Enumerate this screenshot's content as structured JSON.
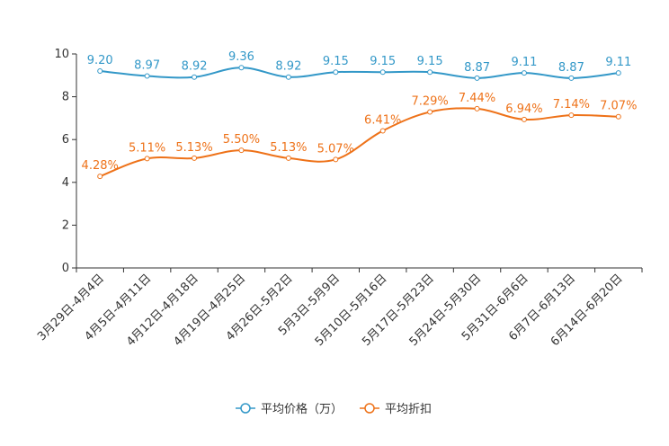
{
  "chart_data": {
    "type": "line",
    "categories": [
      "3月29日-4月4日",
      "4月5日-4月11日",
      "4月12日-4月18日",
      "4月19日-4月25日",
      "4月26日-5月2日",
      "5月3日-5月9日",
      "5月10日-5月16日",
      "5月17日-5月23日",
      "5月24日-5月30日",
      "5月31日-6月6日",
      "6月7日-6月13日",
      "6月14日-6月20日"
    ],
    "series": [
      {
        "name": "平均价格（万）",
        "values": [
          9.2,
          8.97,
          8.92,
          9.36,
          8.92,
          9.15,
          9.15,
          9.15,
          8.87,
          9.11,
          8.87,
          9.11
        ],
        "labels": [
          "9.20",
          "8.97",
          "8.92",
          "9.36",
          "8.92",
          "9.15",
          "9.15",
          "9.15",
          "8.87",
          "9.11",
          "8.87",
          "9.11"
        ],
        "color": "#3398c8"
      },
      {
        "name": "平均折扣",
        "values": [
          4.28,
          5.11,
          5.13,
          5.5,
          5.13,
          5.07,
          6.41,
          7.29,
          7.44,
          6.94,
          7.14,
          7.07
        ],
        "labels": [
          "4.28%",
          "5.11%",
          "5.13%",
          "5.50%",
          "5.13%",
          "5.07%",
          "6.41%",
          "7.29%",
          "7.44%",
          "6.94%",
          "7.14%",
          "7.07%"
        ],
        "color": "#ee7219"
      }
    ],
    "ylim": [
      0,
      10
    ],
    "yticks": [
      "0",
      "2",
      "4",
      "6",
      "8",
      "10"
    ],
    "ytick_values": [
      0,
      2,
      4,
      6,
      8,
      10
    ],
    "legend_position": "bottom-center",
    "grid": false
  }
}
